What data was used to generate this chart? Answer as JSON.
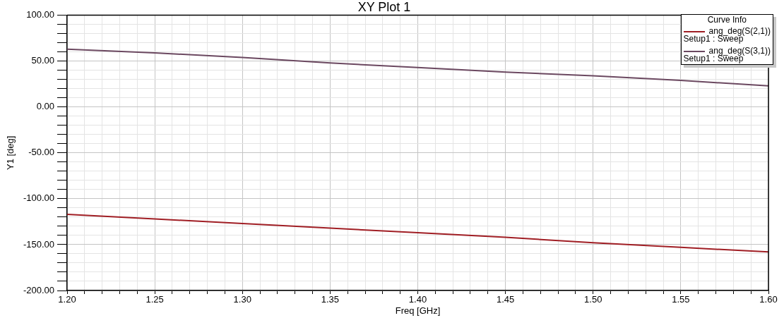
{
  "chart_data": {
    "type": "line",
    "title": "XY Plot 1",
    "xlabel": "Freq [GHz]",
    "ylabel": "Y1 [deg]",
    "legend_title": "Curve Info",
    "x": [
      1.2,
      1.25,
      1.3,
      1.35,
      1.4,
      1.45,
      1.5,
      1.55,
      1.6
    ],
    "series": [
      {
        "name": "ang_deg(S(2,1))\nSetup1 : Sweep",
        "color": "#a01e24",
        "values": [
          -117,
          -122,
          -127,
          -132,
          -137,
          -142,
          -148,
          -153,
          -158
        ]
      },
      {
        "name": "ang_deg(S(3,1))\nSetup1 : Sweep",
        "color": "#6b4860",
        "values": [
          63,
          59,
          54,
          48,
          43,
          38,
          34,
          29,
          23
        ]
      }
    ],
    "xlim": [
      1.2,
      1.6
    ],
    "ylim": [
      -200,
      100
    ],
    "xticks": [
      {
        "value": 1.2,
        "label": "1.20"
      },
      {
        "value": 1.21,
        "label": null
      },
      {
        "value": 1.22,
        "label": null
      },
      {
        "value": 1.23,
        "label": null
      },
      {
        "value": 1.24,
        "label": null
      },
      {
        "value": 1.25,
        "label": "1.25"
      },
      {
        "value": 1.26,
        "label": null
      },
      {
        "value": 1.27,
        "label": null
      },
      {
        "value": 1.28,
        "label": null
      },
      {
        "value": 1.29,
        "label": null
      },
      {
        "value": 1.3,
        "label": "1.30"
      },
      {
        "value": 1.31,
        "label": null
      },
      {
        "value": 1.32,
        "label": null
      },
      {
        "value": 1.33,
        "label": null
      },
      {
        "value": 1.34,
        "label": null
      },
      {
        "value": 1.35,
        "label": "1.35"
      },
      {
        "value": 1.36,
        "label": null
      },
      {
        "value": 1.37,
        "label": null
      },
      {
        "value": 1.38,
        "label": null
      },
      {
        "value": 1.39,
        "label": null
      },
      {
        "value": 1.4,
        "label": "1.40"
      },
      {
        "value": 1.41,
        "label": null
      },
      {
        "value": 1.42,
        "label": null
      },
      {
        "value": 1.43,
        "label": null
      },
      {
        "value": 1.44,
        "label": null
      },
      {
        "value": 1.45,
        "label": "1.45"
      },
      {
        "value": 1.46,
        "label": null
      },
      {
        "value": 1.47,
        "label": null
      },
      {
        "value": 1.48,
        "label": null
      },
      {
        "value": 1.49,
        "label": null
      },
      {
        "value": 1.5,
        "label": "1.50"
      },
      {
        "value": 1.51,
        "label": null
      },
      {
        "value": 1.52,
        "label": null
      },
      {
        "value": 1.53,
        "label": null
      },
      {
        "value": 1.54,
        "label": null
      },
      {
        "value": 1.55,
        "label": "1.55"
      },
      {
        "value": 1.56,
        "label": null
      },
      {
        "value": 1.57,
        "label": null
      },
      {
        "value": 1.58,
        "label": null
      },
      {
        "value": 1.59,
        "label": null
      },
      {
        "value": 1.6,
        "label": "1.60"
      }
    ],
    "yticks": [
      {
        "value": -200,
        "label": "-200.00"
      },
      {
        "value": -190,
        "label": null
      },
      {
        "value": -180,
        "label": null
      },
      {
        "value": -170,
        "label": null
      },
      {
        "value": -160,
        "label": null
      },
      {
        "value": -150,
        "label": "-150.00"
      },
      {
        "value": -140,
        "label": null
      },
      {
        "value": -130,
        "label": null
      },
      {
        "value": -120,
        "label": null
      },
      {
        "value": -110,
        "label": null
      },
      {
        "value": -100,
        "label": "-100.00"
      },
      {
        "value": -90,
        "label": null
      },
      {
        "value": -80,
        "label": null
      },
      {
        "value": -70,
        "label": null
      },
      {
        "value": -60,
        "label": null
      },
      {
        "value": -50,
        "label": "-50.00"
      },
      {
        "value": -40,
        "label": null
      },
      {
        "value": -30,
        "label": null
      },
      {
        "value": -20,
        "label": null
      },
      {
        "value": -10,
        "label": null
      },
      {
        "value": 0,
        "label": "0.00"
      },
      {
        "value": 10,
        "label": null
      },
      {
        "value": 20,
        "label": null
      },
      {
        "value": 30,
        "label": null
      },
      {
        "value": 40,
        "label": null
      },
      {
        "value": 50,
        "label": "50.00"
      },
      {
        "value": 60,
        "label": null
      },
      {
        "value": 70,
        "label": null
      },
      {
        "value": 80,
        "label": null
      },
      {
        "value": 90,
        "label": null
      },
      {
        "value": 100,
        "label": "100.00"
      }
    ],
    "grid": true,
    "legend": "top right",
    "marker": "none",
    "line_style": "solid"
  }
}
